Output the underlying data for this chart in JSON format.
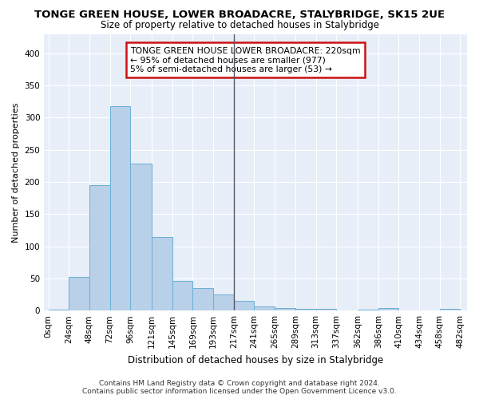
{
  "title": "TONGE GREEN HOUSE, LOWER BROADACRE, STALYBRIDGE, SK15 2UE",
  "subtitle": "Size of property relative to detached houses in Stalybridge",
  "xlabel": "Distribution of detached houses by size in Stalybridge",
  "ylabel": "Number of detached properties",
  "bar_values": [
    2,
    52,
    195,
    318,
    228,
    114,
    46,
    35,
    25,
    15,
    6,
    4,
    3,
    3,
    0,
    2,
    4,
    0,
    0,
    3
  ],
  "bin_edges": [
    0,
    24,
    48,
    72,
    96,
    121,
    145,
    169,
    193,
    217,
    241,
    265,
    289,
    313,
    337,
    362,
    386,
    410,
    434,
    458,
    482
  ],
  "bar_labels": [
    "0sqm",
    "24sqm",
    "48sqm",
    "72sqm",
    "96sqm",
    "121sqm",
    "145sqm",
    "169sqm",
    "193sqm",
    "217sqm",
    "241sqm",
    "265sqm",
    "289sqm",
    "313sqm",
    "337sqm",
    "362sqm",
    "386sqm",
    "410sqm",
    "434sqm",
    "458sqm",
    "482sqm"
  ],
  "bar_color": "#b8d0e8",
  "bar_edge_color": "#6aafd6",
  "vline_x": 9,
  "vline_color": "#555566",
  "annotation_text": "TONGE GREEN HOUSE LOWER BROADACRE: 220sqm\n← 95% of detached houses are smaller (977)\n5% of semi-detached houses are larger (53) →",
  "annotation_box_facecolor": "#ffffff",
  "annotation_box_edgecolor": "#cc1111",
  "ylim": [
    0,
    430
  ],
  "yticks": [
    0,
    50,
    100,
    150,
    200,
    250,
    300,
    350,
    400
  ],
  "background_color": "#e8eef8",
  "footer_line1": "Contains HM Land Registry data © Crown copyright and database right 2024.",
  "footer_line2": "Contains public sector information licensed under the Open Government Licence v3.0.",
  "title_fontsize": 9.5,
  "subtitle_fontsize": 8.5,
  "xlabel_fontsize": 8.5,
  "ylabel_fontsize": 8.0,
  "tick_fontsize": 7.5,
  "footer_fontsize": 6.5,
  "annot_fontsize": 7.8
}
